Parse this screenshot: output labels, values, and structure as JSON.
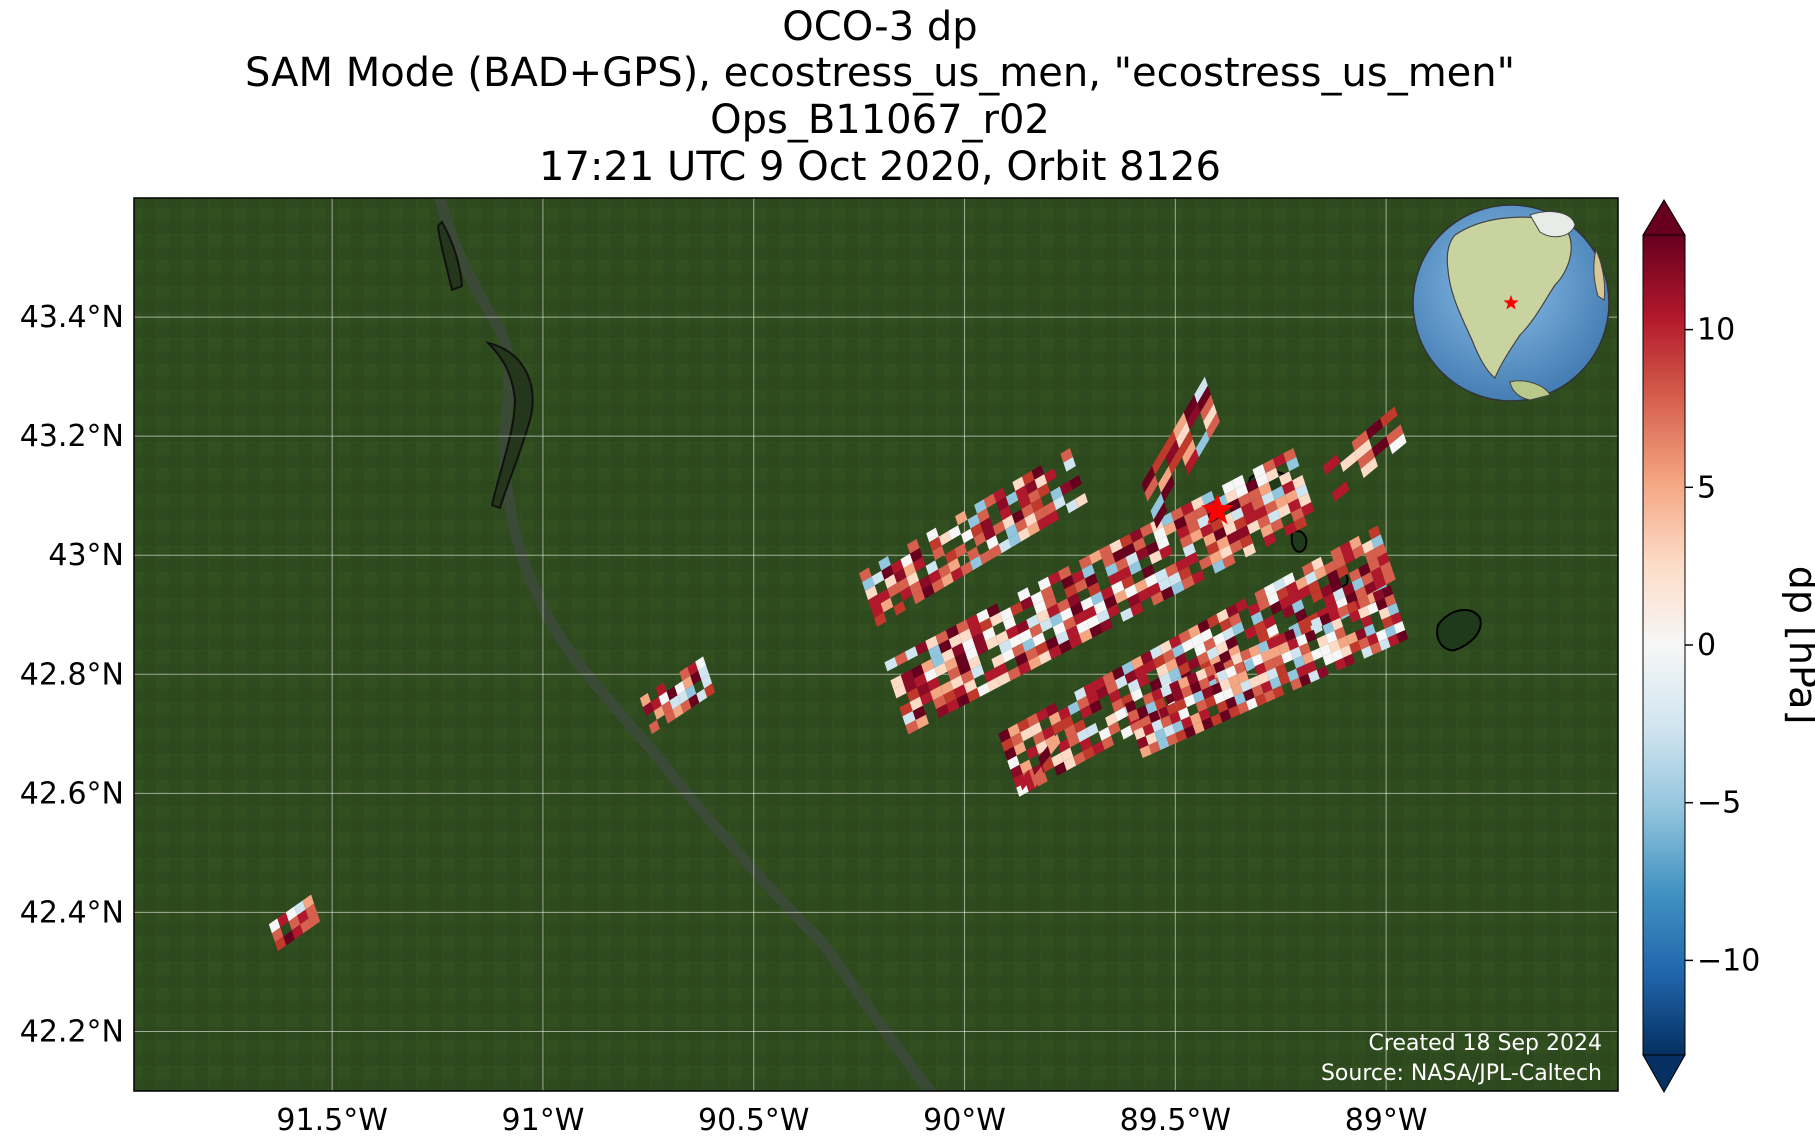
{
  "titles": {
    "line1": "OCO-3 dp",
    "line2": "SAM Mode (BAD+GPS), ecostress_us_men, \"ecostress_us_men\"",
    "line3": "Ops_B11067_r02",
    "line4": "17:21 UTC 9 Oct 2020, Orbit 8126"
  },
  "map": {
    "lon_range": [
      -91.97,
      -88.45
    ],
    "lat_range": [
      42.1,
      43.6
    ],
    "lat_ticks": [
      {
        "value": 42.2,
        "label": "42.2°N"
      },
      {
        "value": 42.4,
        "label": "42.4°N"
      },
      {
        "value": 42.6,
        "label": "42.6°N"
      },
      {
        "value": 42.8,
        "label": "42.8°N"
      },
      {
        "value": 43.0,
        "label": "43°N"
      },
      {
        "value": 43.2,
        "label": "43.2°N"
      },
      {
        "value": 43.4,
        "label": "43.4°N"
      }
    ],
    "lon_ticks": [
      {
        "value": -91.5,
        "label": "91.5°W"
      },
      {
        "value": -91.0,
        "label": "91°W"
      },
      {
        "value": -90.5,
        "label": "90.5°W"
      },
      {
        "value": -90.0,
        "label": "90°W"
      },
      {
        "value": -89.5,
        "label": "89.5°W"
      },
      {
        "value": -89.0,
        "label": "89°W"
      }
    ],
    "target_marker": {
      "lon": -89.4,
      "lat": 43.075,
      "color": "#ff0000",
      "symbol": "star"
    },
    "basemap": "satellite imagery, dark green farmland, Mississippi River",
    "credit_line1": "Created 18 Sep 2024",
    "credit_line2": "Source: NASA/JPL-Caltech"
  },
  "colorbar": {
    "label": "dp [hPa]",
    "vmin": -13,
    "vmax": 13,
    "colormap": "RdBu_r",
    "ticks": [
      {
        "value": 10,
        "label": "10"
      },
      {
        "value": 5,
        "label": "5"
      },
      {
        "value": 0,
        "label": "0"
      },
      {
        "value": -5,
        "label": "−5"
      },
      {
        "value": -10,
        "label": "−10"
      }
    ],
    "extend": "both"
  },
  "inset_globe": {
    "marker_color": "#ff0000",
    "marker_symbol": "star",
    "ocean_color": "#5a8fc0",
    "land_color": "#d9cf9a"
  }
}
